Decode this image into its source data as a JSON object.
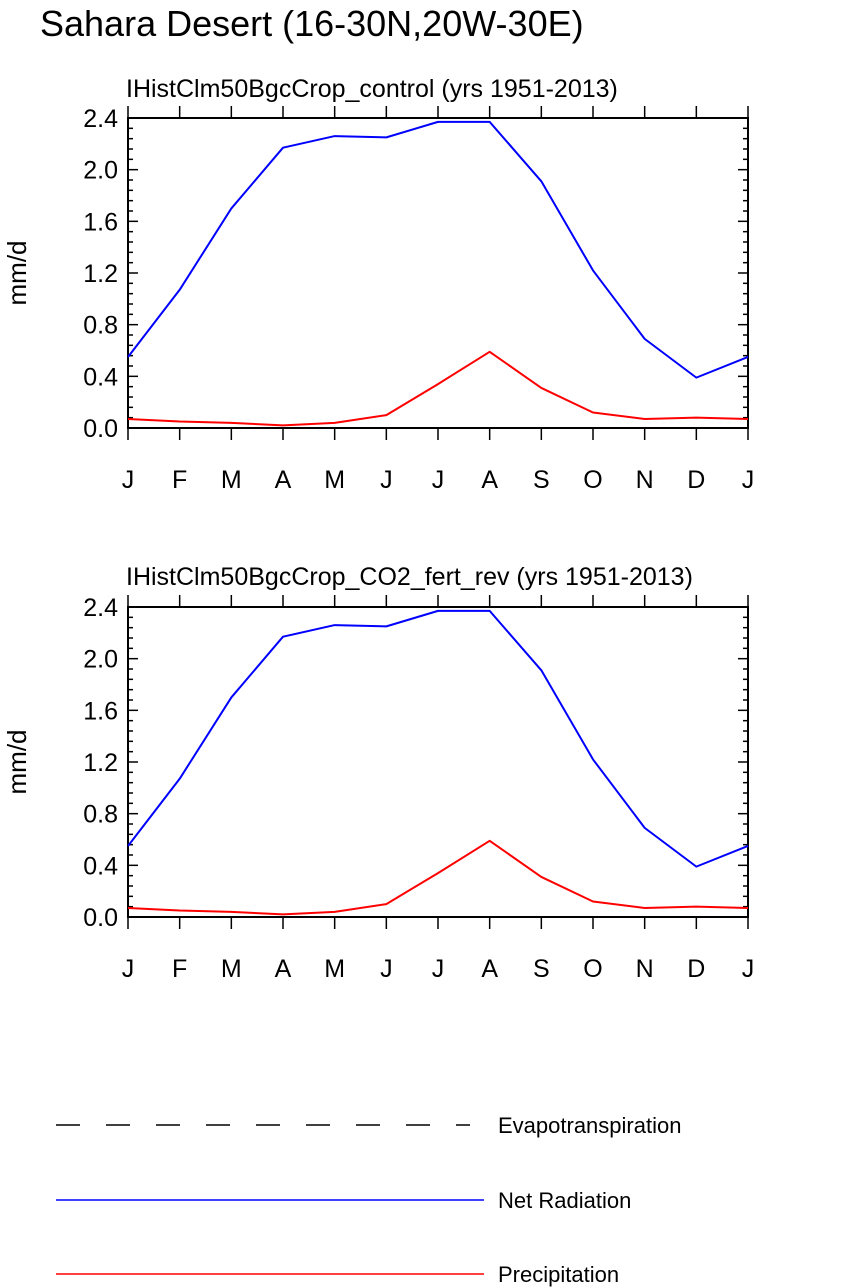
{
  "title": "Sahara Desert (16-30N,20W-30E)",
  "colors": {
    "net_radiation": "#0000ff",
    "precipitation": "#ff0000",
    "evapotranspiration": "#000000",
    "axis": "#000000",
    "background": "#ffffff"
  },
  "legend": {
    "placement": "bottom",
    "items": [
      {
        "label": "Evapotranspiration",
        "color": "#000000",
        "dash": "dashed"
      },
      {
        "label": "Net Radiation",
        "color": "#0000ff",
        "dash": "solid"
      },
      {
        "label": "Precipitation",
        "color": "#ff0000",
        "dash": "solid"
      }
    ]
  },
  "chart_data": [
    {
      "type": "line",
      "title": "IHistClm50BgcCrop_control (yrs 1951-2013)",
      "xlabel": "",
      "ylabel": "mm/d",
      "categories": [
        "J",
        "F",
        "M",
        "A",
        "M",
        "J",
        "J",
        "A",
        "S",
        "O",
        "N",
        "D",
        "J"
      ],
      "ylim": [
        0.0,
        2.4
      ],
      "yticks": [
        "0.0",
        "0.4",
        "0.8",
        "1.2",
        "1.6",
        "2.0",
        "2.4"
      ],
      "grid": false,
      "series": [
        {
          "name": "Net Radiation",
          "color": "#0000ff",
          "values": [
            0.55,
            1.07,
            1.7,
            2.17,
            2.26,
            2.25,
            2.37,
            2.37,
            1.91,
            1.22,
            0.69,
            0.39,
            0.55
          ]
        },
        {
          "name": "Precipitation",
          "color": "#ff0000",
          "values": [
            0.07,
            0.05,
            0.04,
            0.02,
            0.04,
            0.1,
            0.34,
            0.59,
            0.31,
            0.12,
            0.07,
            0.08,
            0.07
          ]
        }
      ]
    },
    {
      "type": "line",
      "title": "IHistClm50BgcCrop_CO2_fert_rev (yrs 1951-2013)",
      "xlabel": "",
      "ylabel": "mm/d",
      "categories": [
        "J",
        "F",
        "M",
        "A",
        "M",
        "J",
        "J",
        "A",
        "S",
        "O",
        "N",
        "D",
        "J"
      ],
      "ylim": [
        0.0,
        2.4
      ],
      "yticks": [
        "0.0",
        "0.4",
        "0.8",
        "1.2",
        "1.6",
        "2.0",
        "2.4"
      ],
      "grid": false,
      "series": [
        {
          "name": "Net Radiation",
          "color": "#0000ff",
          "values": [
            0.55,
            1.07,
            1.7,
            2.17,
            2.26,
            2.25,
            2.37,
            2.37,
            1.91,
            1.22,
            0.69,
            0.39,
            0.55
          ]
        },
        {
          "name": "Precipitation",
          "color": "#ff0000",
          "values": [
            0.07,
            0.05,
            0.04,
            0.02,
            0.04,
            0.1,
            0.34,
            0.59,
            0.31,
            0.12,
            0.07,
            0.08,
            0.07
          ]
        }
      ]
    }
  ]
}
